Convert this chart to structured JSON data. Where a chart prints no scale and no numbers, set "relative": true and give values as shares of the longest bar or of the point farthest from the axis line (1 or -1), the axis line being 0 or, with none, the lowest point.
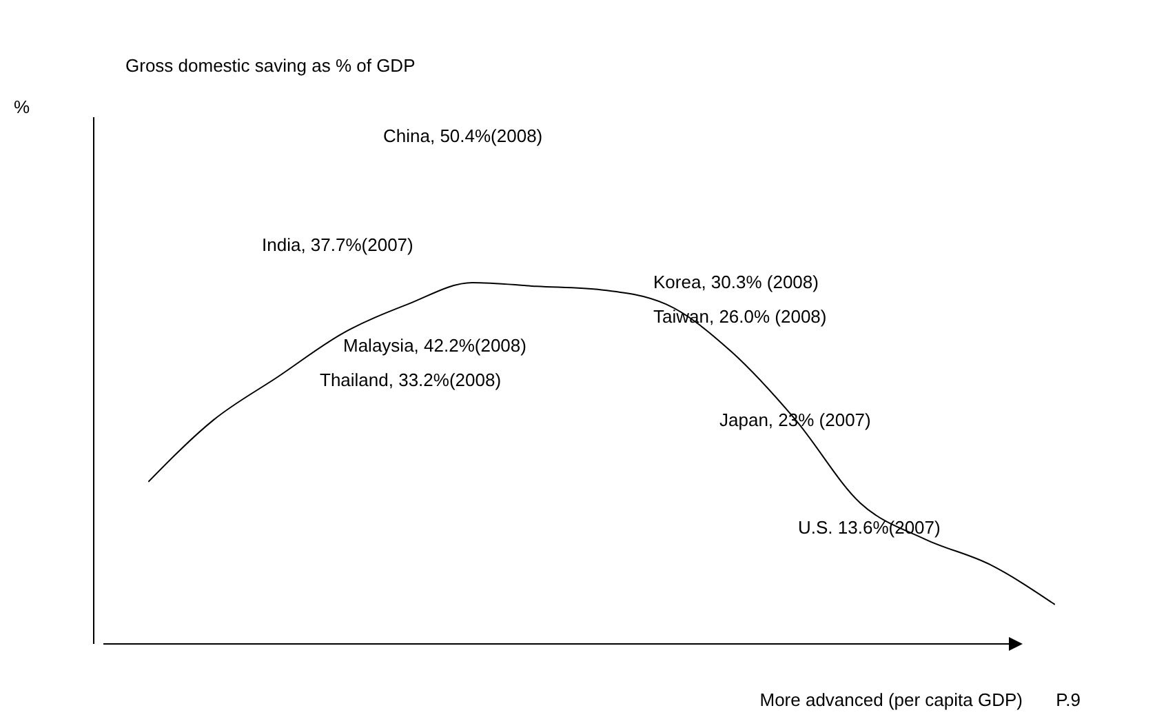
{
  "chart_data": {
    "type": "line",
    "title": "Gross domestic saving as % of GDP",
    "xlabel": "More advanced (per capita GDP)",
    "relative": true,
    "color": "#000000",
    "categories": [
      null,
      null,
      null,
      null,
      null,
      null,
      null,
      null,
      null,
      null,
      null,
      null,
      null,
      null,
      null
    ],
    "values": [
      0.45,
      0.62,
      0.74,
      0.86,
      0.94,
      1.0,
      0.99,
      0.98,
      0.94,
      0.81,
      0.62,
      0.39,
      0.29,
      0.22,
      0.11
    ],
    "annotations": [
      "China, 50.4%(2008)",
      "India, 37.7%(2007)",
      "Korea, 30.3% (2008)",
      "Taiwan, 26.0% (2008)",
      "Malaysia, 42.2%(2008)",
      "Thailand, 33.2%(2008)",
      "Japan, 23% (2007)",
      "U.S. 13.6%(2007)",
      "P.9",
      "%"
    ]
  }
}
